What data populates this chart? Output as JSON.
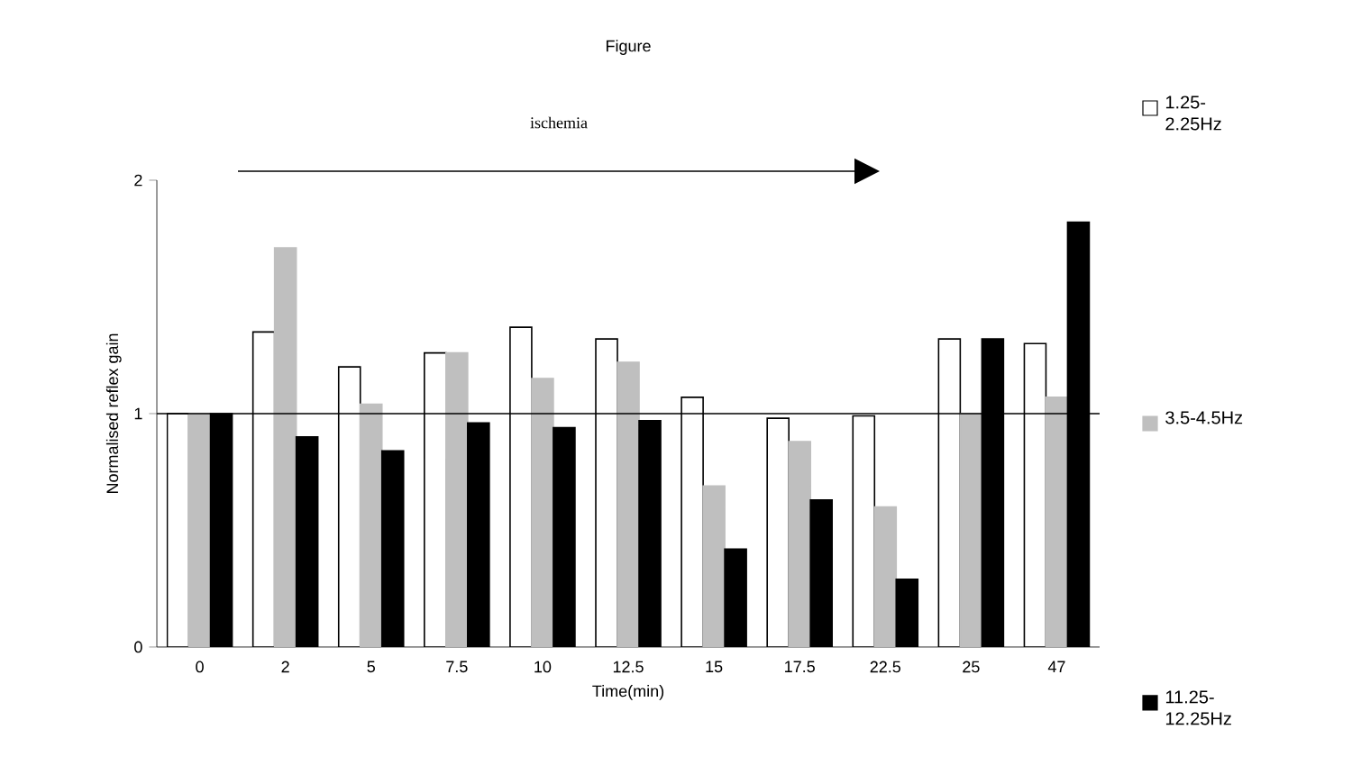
{
  "chart_data": {
    "type": "bar",
    "title": "Figure",
    "xlabel": "Time(min)",
    "ylabel": "Normalised reflex gain",
    "categories": [
      "0",
      "2",
      "5",
      "7.5",
      "10",
      "12.5",
      "15",
      "17.5",
      "22.5",
      "25",
      "47"
    ],
    "series": [
      {
        "name": "1.25-2.25Hz",
        "color": "#ffffff",
        "values": [
          1.0,
          1.35,
          1.2,
          1.26,
          1.37,
          1.32,
          1.07,
          0.98,
          0.99,
          1.32,
          1.3
        ]
      },
      {
        "name": "3.5-4.5Hz",
        "color": "#bfbfbf",
        "values": [
          1.0,
          1.71,
          1.04,
          1.26,
          1.15,
          1.22,
          0.69,
          0.88,
          0.6,
          1.0,
          1.07
        ]
      },
      {
        "name": "11.25-12.25Hz",
        "color": "#000000",
        "values": [
          1.0,
          0.9,
          0.84,
          0.96,
          0.94,
          0.97,
          0.42,
          0.63,
          0.29,
          1.32,
          1.82
        ]
      }
    ],
    "ylim": [
      0,
      2
    ],
    "yticks": [
      0,
      1,
      2
    ],
    "grid": false,
    "legend": "right",
    "ref_lines": [
      {
        "axis": "y",
        "value": 1
      }
    ],
    "annotations": [
      "ischemia"
    ]
  }
}
